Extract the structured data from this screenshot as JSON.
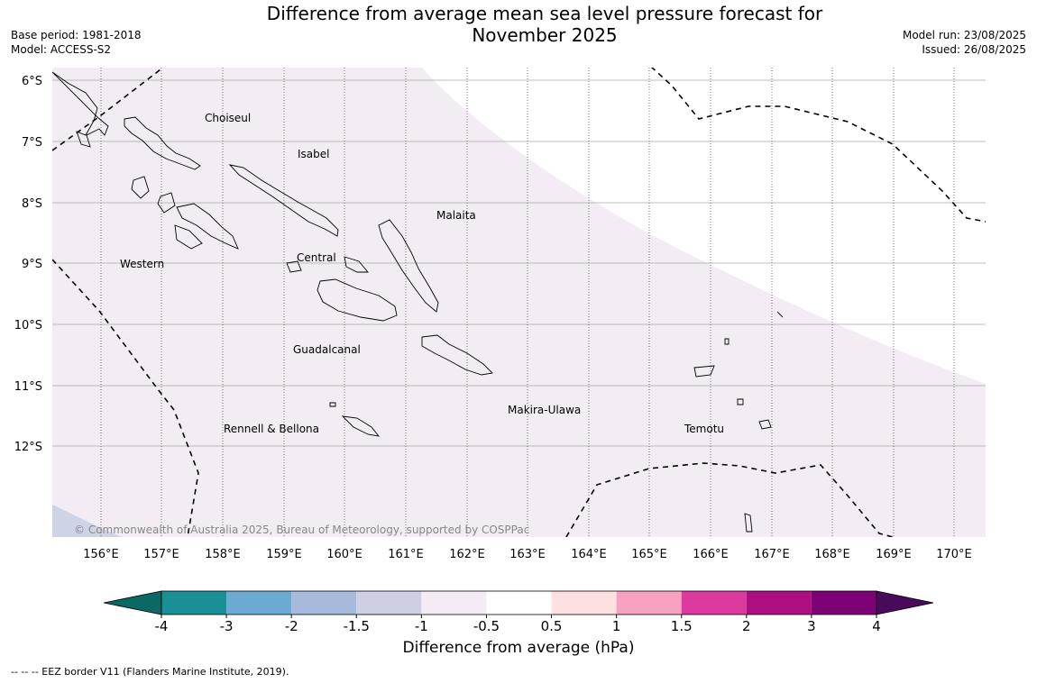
{
  "title_line1": "Difference from average mean sea level pressure forecast for",
  "title_line2": "November 2025",
  "meta_left": [
    "Base period: 1981-2018",
    "Model: ACCESS-S2"
  ],
  "meta_right": [
    "Model run: 23/08/2025",
    "Issued: 26/08/2025"
  ],
  "lat_labels": [
    "6°S",
    "7°S",
    "8°S",
    "9°S",
    "10°S",
    "11°S",
    "12°S"
  ],
  "lon_labels": [
    "156°E",
    "157°E",
    "158°E",
    "159°E",
    "160°E",
    "161°E",
    "162°E",
    "163°E",
    "164°E",
    "165°E",
    "166°E",
    "167°E",
    "168°E",
    "169°E",
    "170°E"
  ],
  "regions": [
    "Choiseul",
    "Isabel",
    "Malaita",
    "Western",
    "Central",
    "Guadalcanal",
    "Rennell & Bellona",
    "Makira-Ulawa",
    "Temotu"
  ],
  "copyright": "© Commonwealth of Australia 2025, Bureau of Meteorology, supported by COSPPac",
  "colorbar": {
    "ticks": [
      "-4",
      "-3",
      "-2",
      "-1.5",
      "-1",
      "-0.5",
      "0.5",
      "1",
      "1.5",
      "2",
      "3",
      "4"
    ],
    "colors": [
      "#1a8f95",
      "#6aaad3",
      "#a6badb",
      "#cfcfe4",
      "#f3ecf5",
      "#ffffff",
      "#fde0e0",
      "#f7a1c0",
      "#dc3a9f",
      "#ad0f81",
      "#7d0275"
    ],
    "under_color": "#0a6a63",
    "over_color": "#4a0a5c",
    "label": "Difference from average (hPa)"
  },
  "field_colors": {
    "neg_0_5_to_1": "#f3ecf5",
    "neg_1_to_1_5": "#cfd3e6"
  },
  "footnote": "--  --  -- EEZ border V11 (Flanders Marine Institute, 2019)."
}
